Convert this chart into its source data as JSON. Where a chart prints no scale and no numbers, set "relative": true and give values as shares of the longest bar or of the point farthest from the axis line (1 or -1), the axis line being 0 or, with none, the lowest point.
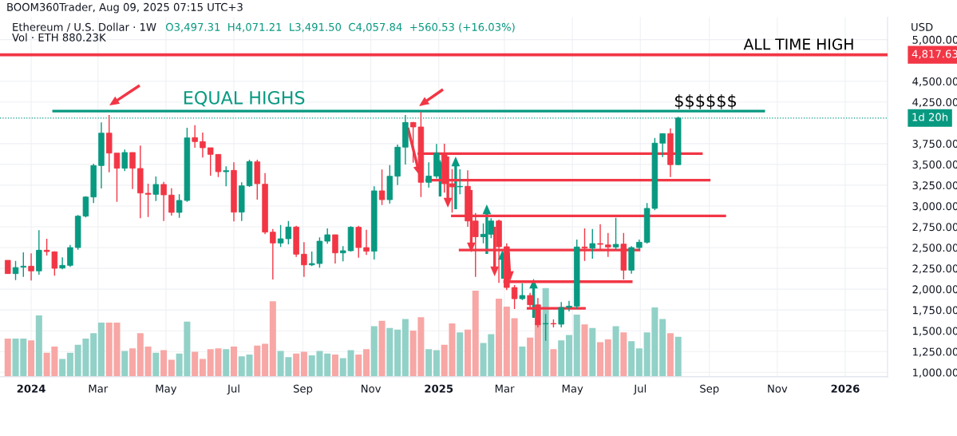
{
  "chart_data": [
    {
      "type": "candlestick",
      "title": "Ethereum / U.S. Dollar · 1W",
      "subtitle": "O3,497.31  H4,071.21  L3,491.50  C4,057.84  +560.53 (+16.03%)",
      "ylabel": "USD",
      "annotations": [
        "BOOM360Trader, Aug 09, 2025 07:15 UTC+3",
        "Vol · ETH 880.23K",
        "ALL TIME HIGH",
        "$$$$$$",
        {
          "text": "EQUAL HIGHS",
          "x": "2024-05-16",
          "y": 4140
        }
      ],
      "x": [
        "2023-12-11",
        "2023-12-18",
        "2023-12-25",
        "2024-01-01",
        "2024-01-08",
        "2024-01-15",
        "2024-01-22",
        "2024-01-29",
        "2024-02-05",
        "2024-02-12",
        "2024-02-19",
        "2024-02-26",
        "2024-03-04",
        "2024-03-11",
        "2024-03-18",
        "2024-03-25",
        "2024-04-01",
        "2024-04-08",
        "2024-04-15",
        "2024-04-22",
        "2024-04-29",
        "2024-05-06",
        "2024-05-13",
        "2024-05-20",
        "2024-05-27",
        "2024-06-03",
        "2024-06-10",
        "2024-06-17",
        "2024-06-24",
        "2024-07-01",
        "2024-07-08",
        "2024-07-15",
        "2024-07-22",
        "2024-07-29",
        "2024-08-05",
        "2024-08-12",
        "2024-08-19",
        "2024-08-26",
        "2024-09-02",
        "2024-09-09",
        "2024-09-16",
        "2024-09-23",
        "2024-09-30",
        "2024-10-07",
        "2024-10-14",
        "2024-10-21",
        "2024-10-28",
        "2024-11-04",
        "2024-11-11",
        "2024-11-18",
        "2024-11-25",
        "2024-12-02",
        "2024-12-09",
        "2024-12-16",
        "2024-12-23",
        "2024-12-30",
        "2025-01-06",
        "2025-01-13",
        "2025-01-20",
        "2025-01-27",
        "2025-02-03",
        "2025-02-10",
        "2025-02-17",
        "2025-02-24",
        "2025-03-03",
        "2025-03-10",
        "2025-03-17",
        "2025-03-24",
        "2025-03-31",
        "2025-04-07",
        "2025-04-14",
        "2025-04-21",
        "2025-04-28",
        "2025-05-05",
        "2025-05-12",
        "2025-05-19",
        "2025-05-26",
        "2025-06-02",
        "2025-06-09",
        "2025-06-16",
        "2025-06-23",
        "2025-06-30",
        "2025-07-07",
        "2025-07-14",
        "2025-07-21",
        "2025-07-28",
        "2025-08-04"
      ],
      "ohlc": [
        [
          2347,
          2347,
          2187,
          2187
        ],
        [
          2187,
          2340,
          2110,
          2260
        ],
        [
          2264,
          2443,
          2148,
          2276
        ],
        [
          2276,
          2430,
          2104,
          2219
        ],
        [
          2219,
          2708,
          2174,
          2468
        ],
        [
          2468,
          2606,
          2404,
          2452
        ],
        [
          2449,
          2455,
          2161,
          2251
        ],
        [
          2254,
          2382,
          2238,
          2286
        ],
        [
          2286,
          2532,
          2267,
          2500
        ],
        [
          2500,
          2891,
          2475,
          2878
        ],
        [
          2878,
          3118,
          2862,
          3108
        ],
        [
          3108,
          3508,
          3035,
          3486
        ],
        [
          3486,
          4004,
          3211,
          3876
        ],
        [
          3876,
          4094,
          3406,
          3636
        ],
        [
          3636,
          3636,
          3051,
          3454
        ],
        [
          3454,
          3678,
          3419,
          3643
        ],
        [
          3643,
          3643,
          3204,
          3454
        ],
        [
          3451,
          3726,
          2852,
          3156
        ],
        [
          3153,
          3268,
          2868,
          3140
        ],
        [
          3140,
          3355,
          3060,
          3259
        ],
        [
          3259,
          3291,
          2820,
          3134
        ],
        [
          3131,
          3214,
          2884,
          2923
        ],
        [
          2923,
          3140,
          2859,
          3067
        ],
        [
          3067,
          3940,
          3051,
          3819
        ],
        [
          3822,
          3972,
          3700,
          3774
        ],
        [
          3774,
          3883,
          3582,
          3700
        ],
        [
          3700,
          3700,
          3364,
          3620
        ],
        [
          3620,
          3620,
          3348,
          3412
        ],
        [
          3412,
          3476,
          3236,
          3425
        ],
        [
          3428,
          3524,
          2814,
          2926
        ],
        [
          2926,
          3284,
          2820,
          3243
        ],
        [
          3243,
          3556,
          3230,
          3534
        ],
        [
          3531,
          3556,
          3076,
          3268
        ],
        [
          3262,
          3396,
          2660,
          2686
        ],
        [
          2686,
          2724,
          2116,
          2555
        ],
        [
          2555,
          2772,
          2507,
          2606
        ],
        [
          2606,
          2820,
          2539,
          2747
        ],
        [
          2747,
          2763,
          2388,
          2420
        ],
        [
          2420,
          2564,
          2148,
          2292
        ],
        [
          2292,
          2452,
          2276,
          2308
        ],
        [
          2308,
          2622,
          2257,
          2577
        ],
        [
          2577,
          2731,
          2545,
          2654
        ],
        [
          2654,
          2654,
          2308,
          2436
        ],
        [
          2436,
          2516,
          2334,
          2462
        ],
        [
          2462,
          2756,
          2452,
          2744
        ],
        [
          2744,
          2763,
          2379,
          2500
        ],
        [
          2500,
          2715,
          2411,
          2456
        ],
        [
          2456,
          3236,
          2356,
          3182
        ],
        [
          3182,
          3438,
          3012,
          3076
        ],
        [
          3076,
          3492,
          3028,
          3358
        ],
        [
          3358,
          3739,
          3252,
          3707
        ],
        [
          3707,
          4094,
          3499,
          4004
        ],
        [
          4004,
          4010,
          3520,
          3950
        ],
        [
          3950,
          4132,
          3108,
          3284
        ],
        [
          3284,
          3525,
          3220,
          3360
        ],
        [
          3360,
          3745,
          3330,
          3635
        ],
        [
          3635,
          3748,
          3160,
          3268
        ],
        [
          3268,
          3444,
          2920,
          3230
        ],
        [
          3230,
          3440,
          3140,
          3236
        ],
        [
          3236,
          3428,
          2750,
          2820
        ],
        [
          2820,
          2916,
          2148,
          2630
        ],
        [
          2630,
          2790,
          2550,
          2660
        ],
        [
          2660,
          2852,
          2612,
          2820
        ],
        [
          2820,
          2836,
          2076,
          2510
        ],
        [
          2510,
          2550,
          1990,
          2020
        ],
        [
          2020,
          2050,
          1760,
          1885
        ],
        [
          1885,
          2070,
          1870,
          1924
        ],
        [
          1924,
          1956,
          1780,
          1812
        ],
        [
          1812,
          1892,
          1540,
          1572
        ],
        [
          1582,
          1700,
          1380,
          1588
        ],
        [
          1588,
          1636,
          1540,
          1582
        ],
        [
          1579,
          1844,
          1540,
          1780
        ],
        [
          1780,
          1860,
          1732,
          1796
        ],
        [
          1796,
          2596,
          1764,
          2507
        ],
        [
          2507,
          2731,
          2340,
          2494
        ],
        [
          2494,
          2724,
          2366,
          2548
        ],
        [
          2548,
          2782,
          2468,
          2539
        ],
        [
          2532,
          2676,
          2388,
          2507
        ],
        [
          2507,
          2859,
          2475,
          2539
        ],
        [
          2542,
          2676,
          2116,
          2228
        ],
        [
          2228,
          2516,
          2187,
          2500
        ],
        [
          2500,
          2596,
          2468,
          2564
        ],
        [
          2564,
          3035,
          2548,
          2971
        ],
        [
          2971,
          3819,
          2948,
          3755
        ],
        [
          3755,
          3870,
          3588,
          3870
        ],
        [
          3870,
          3934,
          3348,
          3497
        ],
        [
          3497.31,
          4071.21,
          3491.5,
          4057.84
        ]
      ],
      "colors": [
        "#f23645",
        "#089981",
        "#089981",
        "#f23645",
        "#089981",
        "#f23645",
        "#f23645",
        "#089981",
        "#089981",
        "#089981",
        "#089981",
        "#089981",
        "#089981",
        "#f23645",
        "#f23645",
        "#089981",
        "#f23645",
        "#f23645",
        "#f23645",
        "#089981",
        "#f23645",
        "#f23645",
        "#089981",
        "#089981",
        "#f23645",
        "#f23645",
        "#f23645",
        "#f23645",
        "#089981",
        "#f23645",
        "#089981",
        "#089981",
        "#f23645",
        "#f23645",
        "#f23645",
        "#089981",
        "#089981",
        "#f23645",
        "#f23645",
        "#089981",
        "#089981",
        "#089981",
        "#f23645",
        "#089981",
        "#089981",
        "#f23645",
        "#f23645",
        "#089981",
        "#f23645",
        "#089981",
        "#089981",
        "#089981",
        "#f23645",
        "#f23645",
        "#089981",
        "#089981",
        "#f23645",
        "#f23645",
        "#089981",
        "#f23645",
        "#f23645",
        "#089981",
        "#089981",
        "#f23645",
        "#f23645",
        "#f23645",
        "#089981",
        "#f23645",
        "#f23645",
        "#089981",
        "#f23645",
        "#089981",
        "#089981",
        "#089981",
        "#f23645",
        "#089981",
        "#f23645",
        "#f23645",
        "#089981",
        "#f23645",
        "#089981",
        "#089981",
        "#089981",
        "#089981",
        "#089981",
        "#f23645",
        "#089981"
      ],
      "series": [
        {
          "type": "line",
          "color": "#089981",
          "x": [
            "2024-01-20",
            "2025-10-21"
          ],
          "values": [
            4140,
            4140
          ]
        },
        {
          "type": "line",
          "color": "#f23645",
          "x": [
            "2024-12-13",
            "2025-08-26"
          ],
          "values": [
            3630,
            3630
          ]
        },
        {
          "type": "line",
          "color": "#f23645",
          "x": [
            "2024-12-20",
            "2025-09-02"
          ],
          "values": [
            3310,
            3310
          ]
        },
        {
          "type": "line",
          "color": "#f23645",
          "x": [
            "2025-01-12",
            "2025-09-16"
          ],
          "values": [
            2880,
            2880
          ]
        },
        {
          "type": "line",
          "color": "#f23645",
          "x": [
            "2025-01-19",
            "2025-07-01"
          ],
          "values": [
            2470,
            2470
          ]
        },
        {
          "type": "line",
          "color": "#f23645",
          "x": [
            "2025-02-28",
            "2025-06-24"
          ],
          "values": [
            2090,
            2090
          ]
        },
        {
          "type": "line",
          "color": "#f23645",
          "x": [
            "2025-03-21",
            "2025-05-13"
          ],
          "values": [
            1770,
            1770
          ]
        }
      ],
      "ref_lines": [
        {
          "axis": "y",
          "value": 4817.63,
          "label": "4,817.63",
          "color": "#f23645",
          "line_style": "solid"
        },
        {
          "axis": "y",
          "value": 4057.84,
          "label": "1d 20h",
          "color": "#089981",
          "line_style": "dotted"
        }
      ],
      "xlim": [
        "2023-12-04",
        "2026-02-08"
      ],
      "xticks": [
        {
          "value": "2024-01-01",
          "label": "2024"
        },
        {
          "value": "2024-03-01",
          "label": "Mar"
        },
        {
          "value": "2024-05-01",
          "label": "May"
        },
        {
          "value": "2024-07-01",
          "label": "Jul"
        },
        {
          "value": "2024-09-01",
          "label": "Sep"
        },
        {
          "value": "2024-11-01",
          "label": "Nov"
        },
        {
          "value": "2025-01-01",
          "label": "2025"
        },
        {
          "value": "2025-03-01",
          "label": "Mar"
        },
        {
          "value": "2025-05-01",
          "label": "May"
        },
        {
          "value": "2025-07-01",
          "label": "Jul"
        },
        {
          "value": "2025-09-01",
          "label": "Sep"
        },
        {
          "value": "2025-11-01",
          "label": "Nov"
        },
        {
          "value": "2026-01-01",
          "label": "2026"
        }
      ],
      "ylim": [
        948,
        5270
      ],
      "yticks": [
        {
          "value": 1000,
          "label": "1,000.00"
        },
        {
          "value": 1250,
          "label": "1,250.00"
        },
        {
          "value": 1500,
          "label": "1,500.00"
        },
        {
          "value": 1750,
          "label": "1,750.00"
        },
        {
          "value": 2000,
          "label": "2,000.00"
        },
        {
          "value": 2250,
          "label": "2,250.00"
        },
        {
          "value": 2500,
          "label": "2,500.00"
        },
        {
          "value": 2750,
          "label": "2,750.00"
        },
        {
          "value": 3000,
          "label": "3,000.00"
        },
        {
          "value": 3250,
          "label": "3,250.00"
        },
        {
          "value": 3500,
          "label": "3,500.00"
        },
        {
          "value": 3750,
          "label": "3,750.00"
        },
        {
          "value": 4250,
          "label": "4,250.00"
        },
        {
          "value": 4500,
          "label": "4,500.00"
        },
        {
          "value": 5000,
          "label": "5,000.00"
        }
      ],
      "grid": true
    },
    {
      "type": "bar",
      "relative": true,
      "x": [
        "2023-12-11",
        "2023-12-18",
        "2023-12-25",
        "2024-01-01",
        "2024-01-08",
        "2024-01-15",
        "2024-01-22",
        "2024-01-29",
        "2024-02-05",
        "2024-02-12",
        "2024-02-19",
        "2024-02-26",
        "2024-03-04",
        "2024-03-11",
        "2024-03-18",
        "2024-03-25",
        "2024-04-01",
        "2024-04-08",
        "2024-04-15",
        "2024-04-22",
        "2024-04-29",
        "2024-05-06",
        "2024-05-13",
        "2024-05-20",
        "2024-05-27",
        "2024-06-03",
        "2024-06-10",
        "2024-06-17",
        "2024-06-24",
        "2024-07-01",
        "2024-07-08",
        "2024-07-15",
        "2024-07-22",
        "2024-07-29",
        "2024-08-05",
        "2024-08-12",
        "2024-08-19",
        "2024-08-26",
        "2024-09-02",
        "2024-09-09",
        "2024-09-16",
        "2024-09-23",
        "2024-09-30",
        "2024-10-07",
        "2024-10-14",
        "2024-10-21",
        "2024-10-28",
        "2024-11-04",
        "2024-11-11",
        "2024-11-18",
        "2024-11-25",
        "2024-12-02",
        "2024-12-09",
        "2024-12-16",
        "2024-12-23",
        "2024-12-30",
        "2025-01-06",
        "2025-01-13",
        "2025-01-20",
        "2025-01-27",
        "2025-02-03",
        "2025-02-10",
        "2025-02-17",
        "2025-02-24",
        "2025-03-03",
        "2025-03-10",
        "2025-03-17",
        "2025-03-24",
        "2025-03-31",
        "2025-04-07",
        "2025-04-14",
        "2025-04-21",
        "2025-04-28",
        "2025-05-05",
        "2025-05-12",
        "2025-05-19",
        "2025-05-26",
        "2025-06-02",
        "2025-06-09",
        "2025-06-16",
        "2025-06-23",
        "2025-06-30",
        "2025-07-07",
        "2025-07-14",
        "2025-07-21",
        "2025-07-28",
        "2025-08-04"
      ],
      "values": [
        0.43,
        0.43,
        0.43,
        0.41,
        0.69,
        0.27,
        0.34,
        0.2,
        0.27,
        0.36,
        0.43,
        0.49,
        0.61,
        0.61,
        0.61,
        0.29,
        0.32,
        0.49,
        0.34,
        0.27,
        0.3,
        0.19,
        0.26,
        0.62,
        0.28,
        0.2,
        0.31,
        0.32,
        0.31,
        0.34,
        0.23,
        0.25,
        0.35,
        0.37,
        0.85,
        0.29,
        0.22,
        0.26,
        0.28,
        0.24,
        0.29,
        0.26,
        0.25,
        0.21,
        0.3,
        0.25,
        0.31,
        0.57,
        0.63,
        0.55,
        0.53,
        0.65,
        0.52,
        0.67,
        0.31,
        0.3,
        0.36,
        0.6,
        0.5,
        0.53,
        0.97,
        0.38,
        0.48,
        0.88,
        0.79,
        0.66,
        0.34,
        0.44,
        0.6,
        1,
        0.31,
        0.41,
        0.47,
        0.7,
        0.59,
        0.55,
        0.39,
        0.42,
        0.57,
        0.5,
        0.4,
        0.32,
        0.5,
        0.78,
        0.65,
        0.49,
        0.45
      ],
      "colors": [
        "#f7a7a5",
        "#92d1c7",
        "#92d1c7",
        "#f7a7a5",
        "#92d1c7",
        "#f7a7a5",
        "#f7a7a5",
        "#92d1c7",
        "#92d1c7",
        "#92d1c7",
        "#92d1c7",
        "#92d1c7",
        "#92d1c7",
        "#f7a7a5",
        "#f7a7a5",
        "#92d1c7",
        "#f7a7a5",
        "#f7a7a5",
        "#f7a7a5",
        "#92d1c7",
        "#f7a7a5",
        "#f7a7a5",
        "#92d1c7",
        "#92d1c7",
        "#f7a7a5",
        "#f7a7a5",
        "#f7a7a5",
        "#f7a7a5",
        "#92d1c7",
        "#f7a7a5",
        "#92d1c7",
        "#92d1c7",
        "#f7a7a5",
        "#f7a7a5",
        "#f7a7a5",
        "#92d1c7",
        "#92d1c7",
        "#f7a7a5",
        "#f7a7a5",
        "#92d1c7",
        "#92d1c7",
        "#92d1c7",
        "#f7a7a5",
        "#92d1c7",
        "#92d1c7",
        "#f7a7a5",
        "#f7a7a5",
        "#92d1c7",
        "#f7a7a5",
        "#92d1c7",
        "#92d1c7",
        "#92d1c7",
        "#f7a7a5",
        "#f7a7a5",
        "#92d1c7",
        "#92d1c7",
        "#f7a7a5",
        "#f7a7a5",
        "#92d1c7",
        "#f7a7a5",
        "#f7a7a5",
        "#92d1c7",
        "#92d1c7",
        "#f7a7a5",
        "#f7a7a5",
        "#f7a7a5",
        "#92d1c7",
        "#f7a7a5",
        "#f7a7a5",
        "#92d1c7",
        "#f7a7a5",
        "#92d1c7",
        "#92d1c7",
        "#92d1c7",
        "#f7a7a5",
        "#92d1c7",
        "#f7a7a5",
        "#f7a7a5",
        "#92d1c7",
        "#f7a7a5",
        "#92d1c7",
        "#92d1c7",
        "#92d1c7",
        "#92d1c7",
        "#92d1c7",
        "#f7a7a5",
        "#92d1c7"
      ],
      "xlim": [
        "2023-12-04",
        "2026-02-08"
      ]
    }
  ]
}
